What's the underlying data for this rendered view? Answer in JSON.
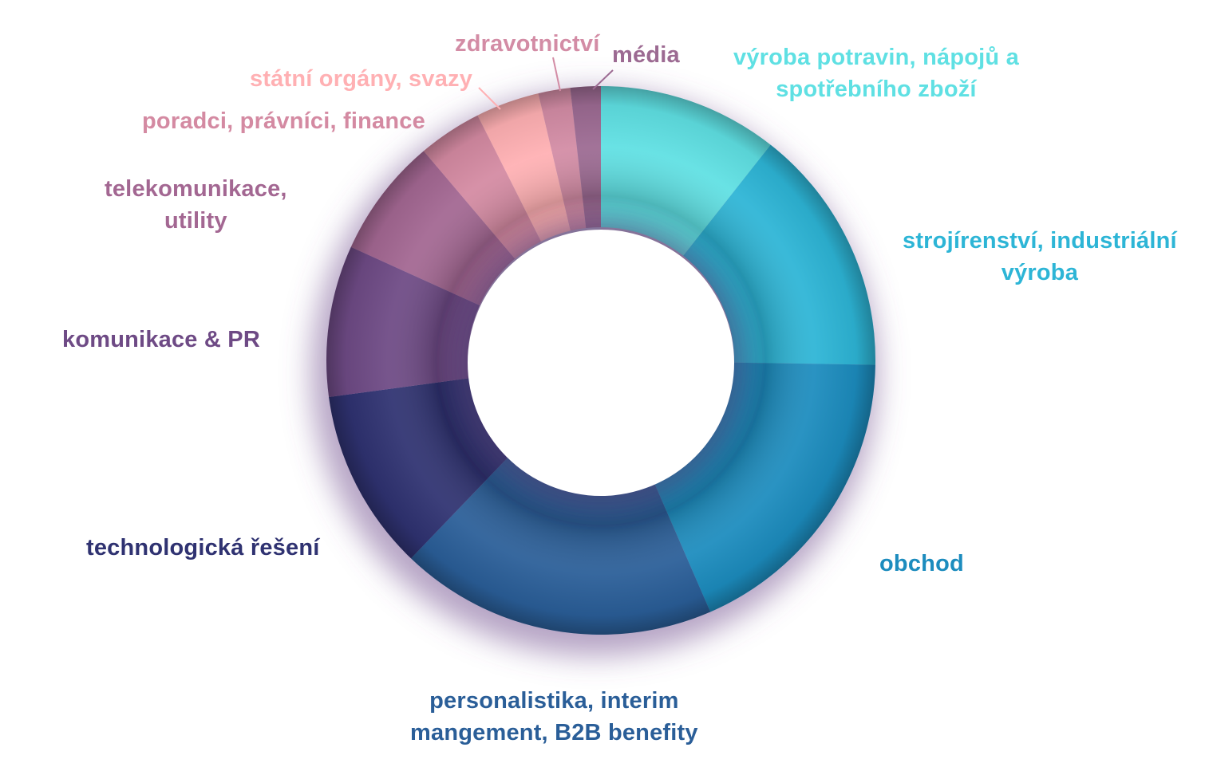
{
  "chart_data": {
    "type": "pie",
    "variant": "donut",
    "title": "",
    "categories": [
      "výroba potravin, nápojů a spotřebního zboží",
      "strojírenství, industriální výroba",
      "obchod",
      "personalistika, interim mangement, B2B benefity",
      "technologická řešení",
      "komunikace & PR",
      "telekomunikace, utility",
      "poradci, právníci, finance",
      "státní orgány, svazy",
      "zdravotnictví",
      "média"
    ],
    "values": [
      11.3,
      15.6,
      19.4,
      19.9,
      11.4,
      9.5,
      7.5,
      4.0,
      4.0,
      2.0,
      1.9
    ],
    "colors": [
      "#5fe0e3",
      "#2db5d6",
      "#1c8cbe",
      "#2a5e98",
      "#2f3271",
      "#6e4a85",
      "#a36792",
      "#d48aa2",
      "#ffb0b3",
      "#d38ca5",
      "#9c6a92"
    ],
    "legend": "none",
    "label_lines": [
      [
        "výroba potravin, nápojů a",
        "spotřebního zboží"
      ],
      [
        "strojírenství, industriální",
        "výroba"
      ],
      [
        "obchod"
      ],
      [
        "personalistika, interim",
        "mangement, B2B benefity"
      ],
      [
        "technologická řešení"
      ],
      [
        "komunikace & PR"
      ],
      [
        "telekomunikace,",
        "utility"
      ],
      [
        "poradci, právníci, finance"
      ],
      [
        "státní orgány, svazy"
      ],
      [
        "zdravotnictví"
      ],
      [
        "média"
      ]
    ],
    "label_colors": [
      "#5fe0e3",
      "#2db5d6",
      "#1c8cbe",
      "#2a5e98",
      "#2f3271",
      "#6e4a85",
      "#a36792",
      "#d48aa2",
      "#ffb0b3",
      "#d38ca5",
      "#9c6a92"
    ]
  }
}
